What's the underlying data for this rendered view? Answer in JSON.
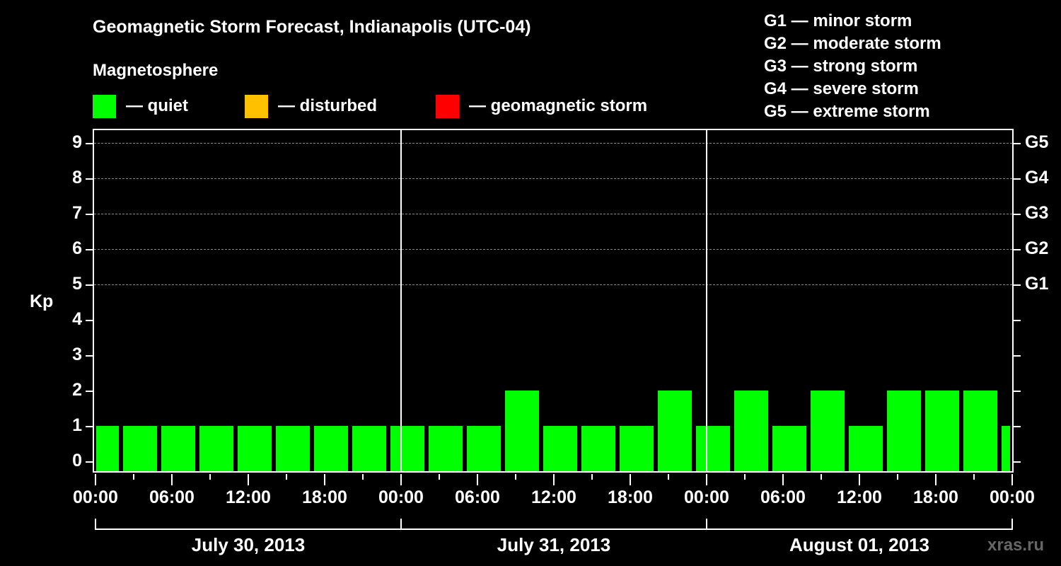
{
  "chart_data": {
    "type": "bar",
    "title": "Geomagnetic Storm Forecast, Indianapolis (UTC-04)",
    "subtitle": "Magnetosphere",
    "ylabel": "Kp",
    "ylim": [
      0,
      9
    ],
    "yticks": [
      0,
      1,
      2,
      3,
      4,
      5,
      6,
      7,
      8,
      9
    ],
    "right_axis_labels": [
      {
        "y": 5,
        "label": "G1"
      },
      {
        "y": 6,
        "label": "G2"
      },
      {
        "y": 7,
        "label": "G3"
      },
      {
        "y": 8,
        "label": "G4"
      },
      {
        "y": 9,
        "label": "G5"
      }
    ],
    "grid": "dashed horizontal at Kp 5-9",
    "xtick_labels": [
      "00:00",
      "06:00",
      "12:00",
      "18:00",
      "00:00",
      "06:00",
      "12:00",
      "18:00",
      "00:00",
      "06:00",
      "12:00",
      "18:00",
      "00:00"
    ],
    "dates": [
      "July 30, 2013",
      "July 31, 2013",
      "August 01, 2013"
    ],
    "interval_hours": 3,
    "values": [
      1,
      1,
      1,
      1,
      1,
      1,
      1,
      1,
      1,
      1,
      1,
      2,
      1,
      1,
      1,
      2,
      1,
      2,
      1,
      2,
      1,
      2,
      2,
      2,
      1
    ],
    "bar_color": "#00ff00",
    "legend": [
      {
        "label": "— quiet",
        "color": "#00ff00"
      },
      {
        "label": "— disturbed",
        "color": "#ffc000"
      },
      {
        "label": "— geomagnetic storm",
        "color": "#ff0000"
      }
    ],
    "g_scale": [
      "G1 — minor storm",
      "G2 — moderate storm",
      "G3 — strong storm",
      "G4 — severe storm",
      "G5 — extreme storm"
    ]
  },
  "header": {
    "title": "Geomagnetic Storm Forecast, Indianapolis (UTC-04)",
    "subtitle": "Magnetosphere"
  },
  "legend": {
    "quiet": "— quiet",
    "disturbed": "— disturbed",
    "storm": "— geomagnetic storm"
  },
  "g_scale": {
    "g1": "G1 — minor storm",
    "g2": "G2 — moderate storm",
    "g3": "G3 — strong storm",
    "g4": "G4 — severe storm",
    "g5": "G5 — extreme storm"
  },
  "axis": {
    "ylabel": "Kp",
    "y": [
      "0",
      "1",
      "2",
      "3",
      "4",
      "5",
      "6",
      "7",
      "8",
      "9"
    ],
    "g": [
      "G1",
      "G2",
      "G3",
      "G4",
      "G5"
    ],
    "x": [
      "00:00",
      "06:00",
      "12:00",
      "18:00",
      "00:00",
      "06:00",
      "12:00",
      "18:00",
      "00:00",
      "06:00",
      "12:00",
      "18:00",
      "00:00"
    ],
    "dates": [
      "July 30, 2013",
      "July 31, 2013",
      "August 01, 2013"
    ]
  },
  "watermark": "xras.ru"
}
